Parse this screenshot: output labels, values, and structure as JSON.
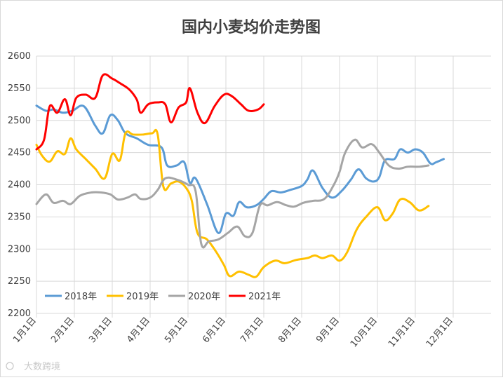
{
  "chart_data": {
    "type": "line",
    "title": "国内小麦均价走势图",
    "xlabel": "",
    "ylabel": "",
    "ylim": [
      2200,
      2600
    ],
    "yticks": [
      2200,
      2250,
      2300,
      2350,
      2400,
      2450,
      2500,
      2550,
      2600
    ],
    "xlim": [
      1,
      13
    ],
    "xtick_labels": [
      "1月1日",
      "2月1日",
      "3月1日",
      "4月1日",
      "5月1日",
      "6月1日",
      "7月1日",
      "8月1日",
      "9月1日",
      "10月1日",
      "11月1日",
      "12月1日"
    ],
    "grid": true,
    "legend_position": "bottom-left",
    "series": [
      {
        "name": "2018年",
        "color": "#5b9bd5",
        "points": [
          [
            1.0,
            2523
          ],
          [
            1.25,
            2515
          ],
          [
            1.45,
            2517
          ],
          [
            1.7,
            2512
          ],
          [
            1.95,
            2515
          ],
          [
            2.25,
            2522
          ],
          [
            2.55,
            2492
          ],
          [
            2.75,
            2480
          ],
          [
            2.95,
            2508
          ],
          [
            3.15,
            2500
          ],
          [
            3.35,
            2480
          ],
          [
            3.65,
            2472
          ],
          [
            3.95,
            2462
          ],
          [
            4.3,
            2458
          ],
          [
            4.45,
            2430
          ],
          [
            4.7,
            2430
          ],
          [
            4.9,
            2435
          ],
          [
            5.05,
            2403
          ],
          [
            5.2,
            2410
          ],
          [
            5.5,
            2370
          ],
          [
            5.8,
            2325
          ],
          [
            6.0,
            2355
          ],
          [
            6.2,
            2352
          ],
          [
            6.35,
            2373
          ],
          [
            6.55,
            2365
          ],
          [
            6.8,
            2368
          ],
          [
            7.0,
            2378
          ],
          [
            7.2,
            2390
          ],
          [
            7.45,
            2388
          ],
          [
            7.7,
            2392
          ],
          [
            8.0,
            2398
          ],
          [
            8.15,
            2408
          ],
          [
            8.3,
            2422
          ],
          [
            8.55,
            2395
          ],
          [
            8.8,
            2380
          ],
          [
            9.05,
            2390
          ],
          [
            9.3,
            2408
          ],
          [
            9.5,
            2424
          ],
          [
            9.7,
            2410
          ],
          [
            9.9,
            2405
          ],
          [
            10.05,
            2412
          ],
          [
            10.2,
            2438
          ],
          [
            10.45,
            2440
          ],
          [
            10.6,
            2455
          ],
          [
            10.8,
            2450
          ],
          [
            11.0,
            2455
          ],
          [
            11.2,
            2450
          ],
          [
            11.4,
            2433
          ],
          [
            11.55,
            2435
          ],
          [
            11.75,
            2440
          ]
        ]
      },
      {
        "name": "2019年",
        "color": "#ffc000",
        "points": [
          [
            1.0,
            2462
          ],
          [
            1.15,
            2445
          ],
          [
            1.35,
            2436
          ],
          [
            1.55,
            2452
          ],
          [
            1.75,
            2448
          ],
          [
            1.9,
            2472
          ],
          [
            2.05,
            2455
          ],
          [
            2.3,
            2440
          ],
          [
            2.55,
            2425
          ],
          [
            2.8,
            2410
          ],
          [
            3.0,
            2448
          ],
          [
            3.2,
            2438
          ],
          [
            3.35,
            2480
          ],
          [
            3.55,
            2478
          ],
          [
            3.8,
            2478
          ],
          [
            4.05,
            2480
          ],
          [
            4.2,
            2478
          ],
          [
            4.35,
            2397
          ],
          [
            4.55,
            2402
          ],
          [
            4.75,
            2405
          ],
          [
            4.95,
            2395
          ],
          [
            5.1,
            2375
          ],
          [
            5.25,
            2325
          ],
          [
            5.5,
            2315
          ],
          [
            5.75,
            2295
          ],
          [
            5.95,
            2275
          ],
          [
            6.1,
            2258
          ],
          [
            6.35,
            2265
          ],
          [
            6.6,
            2260
          ],
          [
            6.8,
            2257
          ],
          [
            7.0,
            2272
          ],
          [
            7.3,
            2282
          ],
          [
            7.55,
            2278
          ],
          [
            7.85,
            2283
          ],
          [
            8.15,
            2286
          ],
          [
            8.35,
            2290
          ],
          [
            8.55,
            2286
          ],
          [
            8.8,
            2290
          ],
          [
            9.0,
            2282
          ],
          [
            9.2,
            2295
          ],
          [
            9.45,
            2330
          ],
          [
            9.7,
            2350
          ],
          [
            10.0,
            2365
          ],
          [
            10.2,
            2345
          ],
          [
            10.4,
            2355
          ],
          [
            10.6,
            2377
          ],
          [
            10.85,
            2373
          ],
          [
            11.1,
            2360
          ],
          [
            11.35,
            2367
          ]
        ]
      },
      {
        "name": "2020年",
        "color": "#a5a5a5",
        "points": [
          [
            1.0,
            2370
          ],
          [
            1.25,
            2385
          ],
          [
            1.45,
            2372
          ],
          [
            1.7,
            2375
          ],
          [
            1.9,
            2370
          ],
          [
            2.15,
            2383
          ],
          [
            2.45,
            2388
          ],
          [
            2.7,
            2388
          ],
          [
            2.95,
            2385
          ],
          [
            3.15,
            2377
          ],
          [
            3.4,
            2380
          ],
          [
            3.6,
            2385
          ],
          [
            3.75,
            2378
          ],
          [
            4.0,
            2380
          ],
          [
            4.2,
            2392
          ],
          [
            4.4,
            2410
          ],
          [
            4.7,
            2408
          ],
          [
            5.0,
            2400
          ],
          [
            5.2,
            2390
          ],
          [
            5.35,
            2308
          ],
          [
            5.55,
            2312
          ],
          [
            5.8,
            2315
          ],
          [
            6.05,
            2325
          ],
          [
            6.3,
            2335
          ],
          [
            6.5,
            2320
          ],
          [
            6.7,
            2325
          ],
          [
            6.9,
            2368
          ],
          [
            7.1,
            2368
          ],
          [
            7.35,
            2373
          ],
          [
            7.6,
            2368
          ],
          [
            7.8,
            2366
          ],
          [
            8.05,
            2372
          ],
          [
            8.3,
            2375
          ],
          [
            8.6,
            2378
          ],
          [
            8.85,
            2400
          ],
          [
            9.0,
            2420
          ],
          [
            9.15,
            2450
          ],
          [
            9.4,
            2470
          ],
          [
            9.6,
            2458
          ],
          [
            9.85,
            2463
          ],
          [
            10.05,
            2450
          ],
          [
            10.3,
            2430
          ],
          [
            10.55,
            2425
          ],
          [
            10.8,
            2428
          ],
          [
            11.1,
            2428
          ],
          [
            11.35,
            2430
          ]
        ]
      },
      {
        "name": "2021年",
        "color": "#ff0000",
        "points": [
          [
            1.0,
            2455
          ],
          [
            1.2,
            2470
          ],
          [
            1.35,
            2522
          ],
          [
            1.55,
            2512
          ],
          [
            1.75,
            2533
          ],
          [
            1.9,
            2508
          ],
          [
            2.05,
            2535
          ],
          [
            2.3,
            2540
          ],
          [
            2.55,
            2535
          ],
          [
            2.75,
            2570
          ],
          [
            3.0,
            2565
          ],
          [
            3.2,
            2558
          ],
          [
            3.45,
            2548
          ],
          [
            3.65,
            2532
          ],
          [
            3.75,
            2512
          ],
          [
            3.95,
            2525
          ],
          [
            4.2,
            2528
          ],
          [
            4.4,
            2525
          ],
          [
            4.55,
            2497
          ],
          [
            4.75,
            2520
          ],
          [
            4.95,
            2528
          ],
          [
            5.05,
            2550
          ],
          [
            5.25,
            2512
          ],
          [
            5.45,
            2496
          ],
          [
            5.7,
            2522
          ],
          [
            5.95,
            2540
          ],
          [
            6.15,
            2538
          ],
          [
            6.4,
            2525
          ],
          [
            6.6,
            2515
          ],
          [
            6.85,
            2517
          ],
          [
            7.0,
            2525
          ]
        ]
      }
    ]
  },
  "watermark": "大数跨境"
}
